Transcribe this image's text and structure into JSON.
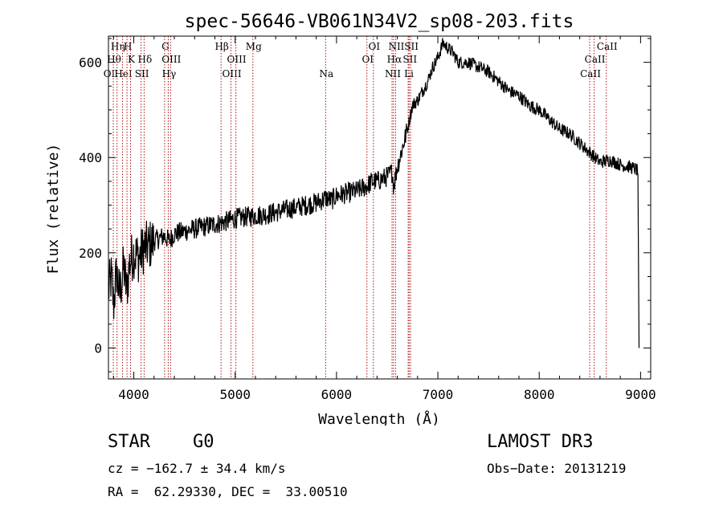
{
  "chart_data": {
    "type": "line",
    "title": "spec-56646-VB061N34V2_sp08-203.fits",
    "xlabel": "Wavelength (Å)",
    "ylabel": "Flux (relative)",
    "xlim": [
      3750,
      9100
    ],
    "ylim": [
      -65,
      655
    ],
    "x_ticks": [
      4000,
      5000,
      6000,
      7000,
      8000,
      9000
    ],
    "y_ticks": [
      0,
      200,
      400,
      600
    ],
    "series": [
      {
        "name": "flux",
        "x": [
          3750,
          3780,
          3800,
          3830,
          3860,
          3900,
          3930,
          3960,
          4000,
          4050,
          4100,
          4150,
          4200,
          4250,
          4300,
          4350,
          4400,
          4500,
          4600,
          4700,
          4800,
          4850,
          4900,
          4950,
          5000,
          5100,
          5200,
          5300,
          5400,
          5500,
          5600,
          5700,
          5800,
          5850,
          5900,
          5950,
          6000,
          6100,
          6200,
          6300,
          6350,
          6400,
          6500,
          6550,
          6563,
          6600,
          6650,
          6700,
          6720,
          6750,
          6800,
          6900,
          6950,
          7000,
          7050,
          7100,
          7150,
          7200,
          7300,
          7400,
          7500,
          7600,
          7700,
          7800,
          7900,
          8000,
          8100,
          8200,
          8300,
          8400,
          8500,
          8550,
          8600,
          8700,
          8800,
          8900,
          8960,
          8975,
          8985
        ],
        "y": [
          120,
          150,
          90,
          160,
          110,
          170,
          120,
          180,
          200,
          190,
          210,
          215,
          225,
          230,
          235,
          225,
          240,
          245,
          250,
          255,
          260,
          262,
          265,
          268,
          272,
          275,
          278,
          280,
          285,
          290,
          295,
          300,
          305,
          310,
          315,
          310,
          320,
          325,
          330,
          340,
          350,
          350,
          360,
          370,
          340,
          380,
          420,
          460,
          480,
          510,
          520,
          560,
          590,
          610,
          640,
          630,
          620,
          600,
          600,
          590,
          580,
          560,
          540,
          530,
          510,
          500,
          480,
          460,
          450,
          430,
          410,
          400,
          390,
          395,
          385,
          380,
          375,
          370,
          0
        ]
      }
    ],
    "lines": [
      {
        "name": "OI",
        "wl": 3750,
        "row": 3
      },
      {
        "name": "Hθ",
        "wl": 3798,
        "row": 2
      },
      {
        "name": "Hη",
        "wl": 3835,
        "row": 1
      },
      {
        "name": "HeI",
        "wl": 3889,
        "row": 3
      },
      {
        "name": "H",
        "wl": 3933,
        "row": 1
      },
      {
        "name": "K",
        "wl": 3968,
        "row": 2
      },
      {
        "name": "SII",
        "wl": 4072,
        "row": 3
      },
      {
        "name": "Hδ",
        "wl": 4102,
        "row": 2
      },
      {
        "name": "G",
        "wl": 4304,
        "row": 1
      },
      {
        "name": "Hγ",
        "wl": 4340,
        "row": 3
      },
      {
        "name": "OIII",
        "wl": 4363,
        "row": 2
      },
      {
        "name": "Hβ",
        "wl": 4861,
        "row": 1
      },
      {
        "name": "OIII",
        "wl": 4959,
        "row": 3
      },
      {
        "name": "OIII",
        "wl": 5007,
        "row": 2
      },
      {
        "name": "Mg",
        "wl": 5175,
        "row": 1
      },
      {
        "name": "Na",
        "wl": 5893,
        "row": 3
      },
      {
        "name": "OI",
        "wl": 6300,
        "row": 2
      },
      {
        "name": "OI",
        "wl": 6364,
        "row": 1
      },
      {
        "name": "NII",
        "wl": 6548,
        "row": 3
      },
      {
        "name": "Hα",
        "wl": 6563,
        "row": 2
      },
      {
        "name": "NII",
        "wl": 6583,
        "row": 1
      },
      {
        "name": "Li",
        "wl": 6707,
        "row": 3
      },
      {
        "name": "SII",
        "wl": 6716,
        "row": 2
      },
      {
        "name": "SII",
        "wl": 6731,
        "row": 1
      },
      {
        "name": "CaII",
        "wl": 8498,
        "row": 3
      },
      {
        "name": "CaII",
        "wl": 8542,
        "row": 2
      },
      {
        "name": "CaII",
        "wl": 8662,
        "row": 1
      }
    ]
  },
  "info": {
    "class": "STAR    G0",
    "survey": "LAMOST DR3",
    "cz": "cz = −162.7 ± 34.4 km/s",
    "obs_date": "Obs−Date: 20131219",
    "radec": "RA =  62.29330, DEC =  33.00510"
  }
}
